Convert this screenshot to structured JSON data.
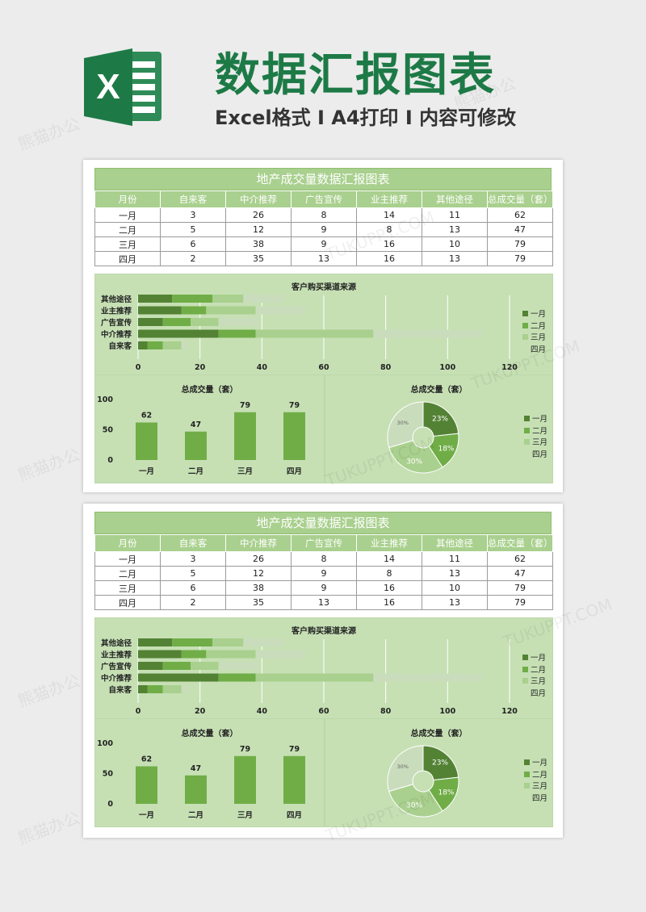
{
  "header": {
    "title": "数据汇报图表",
    "subtitle": "Excel格式 I A4打印 I 内容可修改",
    "logo_letter": "X"
  },
  "sheet": {
    "title": "地产成交量数据汇报图表",
    "columns": [
      "月份",
      "自来客",
      "中介推荐",
      "广告宣传",
      "业主推荐",
      "其他途径",
      "总成交量（套）"
    ],
    "rows": [
      [
        "一月",
        "3",
        "26",
        "8",
        "14",
        "11",
        "62"
      ],
      [
        "二月",
        "5",
        "12",
        "9",
        "8",
        "13",
        "47"
      ],
      [
        "三月",
        "6",
        "38",
        "9",
        "16",
        "10",
        "79"
      ],
      [
        "四月",
        "2",
        "35",
        "13",
        "16",
        "13",
        "79"
      ]
    ]
  },
  "colors": {
    "brand": "#1d7a46",
    "header_green": "#a9d08e",
    "chart_bg": "#c6e0b4",
    "series": [
      "#548235",
      "#70ad47",
      "#a9d08e",
      "#c9dcbc"
    ]
  },
  "watermark": {
    "text_cn": "熊猫办公",
    "text_en": "TUKUPPT.COM"
  },
  "chart_data": [
    {
      "type": "bar",
      "orientation": "horizontal",
      "stacked": true,
      "title": "客户购买渠道来源",
      "categories": [
        "其他途径",
        "业主推荐",
        "广告宣传",
        "中介推荐",
        "自来客"
      ],
      "series": [
        {
          "name": "一月",
          "values": [
            11,
            14,
            8,
            26,
            3
          ]
        },
        {
          "name": "二月",
          "values": [
            13,
            8,
            9,
            12,
            5
          ]
        },
        {
          "name": "三月",
          "values": [
            10,
            16,
            9,
            38,
            6
          ]
        },
        {
          "name": "四月",
          "values": [
            13,
            16,
            13,
            35,
            2
          ]
        }
      ],
      "xlim": [
        0,
        120
      ],
      "xticks": [
        "0",
        "20",
        "40",
        "60",
        "80",
        "100",
        "120"
      ],
      "legend": "right",
      "grid": true
    },
    {
      "type": "bar",
      "title": "总成交量（套）",
      "categories": [
        "一月",
        "二月",
        "三月",
        "四月"
      ],
      "values": [
        62,
        47,
        79,
        79
      ],
      "ylim": [
        0,
        100
      ],
      "yticks": [
        "0",
        "50",
        "100"
      ]
    },
    {
      "type": "pie",
      "title": "总成交量（套）",
      "labels": [
        "一月",
        "二月",
        "三月",
        "四月"
      ],
      "values": [
        62,
        47,
        79,
        79
      ],
      "slice_labels": [
        "23%",
        "18%",
        "30%",
        "30%"
      ],
      "legend": "right"
    }
  ]
}
